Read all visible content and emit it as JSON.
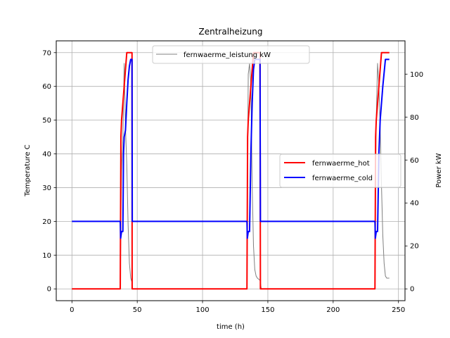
{
  "chart_data": {
    "type": "line",
    "title": "Zentralheizung",
    "xlabel": "time (h)",
    "ylabel_left": "Temperature C",
    "ylabel_right": "Power kW",
    "xlim": [
      -12,
      255
    ],
    "ylim_left": [
      -3.5,
      73.5
    ],
    "ylim_right": [
      -5.5,
      115.5
    ],
    "xticks": [
      0,
      50,
      100,
      150,
      200,
      250
    ],
    "yticks_left": [
      0,
      10,
      20,
      30,
      40,
      50,
      60,
      70
    ],
    "yticks_right": [
      0,
      20,
      40,
      60,
      80,
      100
    ],
    "grid": true,
    "legend_right_axis": {
      "placement": "upper center",
      "entries": [
        "fernwaerme_leistung kW"
      ]
    },
    "legend_left_axis": {
      "placement": "center right",
      "entries": [
        "fernwaerme_hot",
        "fernwaerme_cold"
      ]
    },
    "series": [
      {
        "name": "fernwaerme_hot",
        "axis": "left",
        "color": "#ff0000",
        "x": [
          0,
          37,
          37.5,
          38,
          39,
          40,
          41,
          42,
          43,
          45,
          46,
          46.1,
          47,
          134,
          134.5,
          135,
          136,
          137,
          138,
          139,
          140,
          142,
          144,
          144.3,
          145,
          232,
          232.5,
          233,
          234,
          235,
          236,
          237,
          238,
          240,
          242,
          243
        ],
        "y": [
          0,
          0,
          45,
          50,
          55,
          60,
          65,
          70,
          70,
          70,
          70,
          0,
          0,
          0,
          45,
          50,
          55,
          60,
          65,
          70,
          70,
          70,
          70,
          0,
          0,
          0,
          45,
          50,
          55,
          60,
          65,
          70,
          70,
          70,
          70,
          70
        ]
      },
      {
        "name": "fernwaerme_cold",
        "axis": "left",
        "color": "#0000ff",
        "x": [
          0,
          37,
          37.3,
          38,
          39,
          39.5,
          40,
          41,
          42,
          43,
          44,
          45,
          46,
          46.2,
          47,
          134,
          134.3,
          135,
          136,
          137,
          138,
          139,
          140,
          141,
          142,
          143,
          144,
          144.3,
          145,
          232,
          232.3,
          233,
          234,
          235,
          236,
          237,
          238,
          239,
          240,
          241,
          242,
          243
        ],
        "y": [
          20,
          20,
          15,
          17,
          17,
          40,
          45,
          47,
          55,
          62,
          66,
          68,
          68,
          20,
          20,
          20,
          15,
          17,
          17,
          40,
          55,
          65,
          68,
          68,
          68,
          68,
          68,
          20,
          20,
          20,
          15,
          17,
          17,
          40,
          50,
          55,
          60,
          64,
          68,
          68,
          68,
          68
        ]
      },
      {
        "name": "fernwaerme_leistung kW",
        "axis": "right",
        "color": "#808080",
        "x": [
          0,
          37,
          37.5,
          38,
          39,
          40,
          41,
          42,
          43,
          44,
          45,
          46,
          46.5,
          47,
          134,
          134.5,
          135,
          136,
          137,
          138,
          139,
          140,
          141,
          142,
          144,
          145,
          232,
          232.5,
          233,
          234,
          235,
          236,
          237,
          238,
          239,
          240,
          241,
          242,
          243
        ],
        "y": [
          0,
          0,
          30,
          55,
          70,
          105,
          75,
          58,
          30,
          12,
          5,
          3,
          0,
          0,
          0,
          60,
          100,
          105,
          95,
          48,
          20,
          9,
          6,
          5,
          4,
          0,
          0,
          50,
          80,
          105,
          95,
          75,
          48,
          25,
          12,
          6,
          5,
          5,
          5
        ]
      }
    ]
  }
}
